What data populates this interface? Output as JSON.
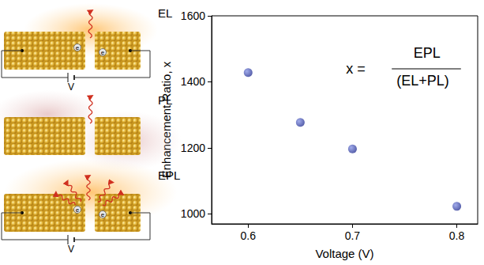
{
  "chart_data": {
    "type": "scatter",
    "x_label": "Voltage (V)",
    "y_label": "Enhancement Ratio, x",
    "x": [
      0.6,
      0.65,
      0.7,
      0.8
    ],
    "values": [
      1428,
      1277,
      1197,
      1023
    ],
    "color": "#2a3593",
    "marker": "circle",
    "xlim": [
      0.565,
      0.82
    ],
    "xticks": [
      0.6,
      0.7,
      0.8
    ],
    "ylim": [
      970,
      1600
    ],
    "yticks": [
      1000,
      1200,
      1400,
      1600
    ],
    "grid": false,
    "annotation": {
      "lhs": "x =",
      "numerator": "EPL",
      "denominator": "(EL+PL)"
    }
  },
  "diagram": {
    "panels": [
      {
        "label": "EL",
        "bias": "V",
        "electron": "e"
      },
      {
        "label": "PL"
      },
      {
        "label": "EPL",
        "bias": "V",
        "electron": "e"
      }
    ]
  }
}
